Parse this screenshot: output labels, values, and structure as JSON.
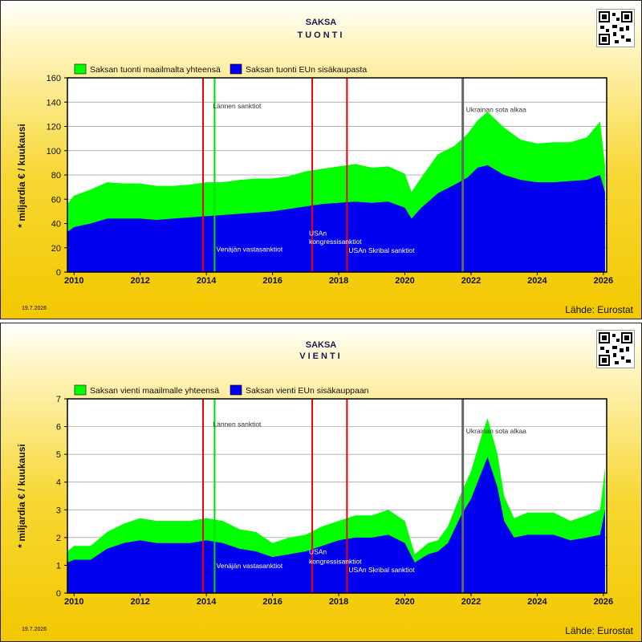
{
  "charts": [
    {
      "title": "SAKSA",
      "subtitle": "TUONTI",
      "ylabel": "* miljardia € / kuukausi",
      "legend": [
        "Saksan tuonti maailmalta yhteensä",
        "Saksan tuonti EUn sisäkaupasta"
      ],
      "date": "19.7.2026",
      "source": "Lähde: Eurostat"
    },
    {
      "title": "SAKSA",
      "subtitle": "VIENTI",
      "ylabel": "* miljardia € / kuukausi",
      "legend": [
        "Saksan vienti maailmalle yhteensä",
        "Saksan vienti EUn sisäkauppaan"
      ],
      "date": "19.7.2026",
      "source": "Lähde: Eurostat"
    }
  ],
  "colors": {
    "total": "#00ff00",
    "eu": "#0000ee",
    "sanction": "#ee0000",
    "west": "#00dd00",
    "war": "#666666"
  },
  "chart_data": [
    {
      "type": "area",
      "title": "SAKSA TUONTI",
      "ylabel": "* miljardia € / kuukausi",
      "ylim": [
        0,
        160
      ],
      "yticks": [
        0,
        20,
        40,
        60,
        80,
        100,
        120,
        140,
        160
      ],
      "xlim": [
        2009.8,
        2026.1
      ],
      "xticks": [
        2010,
        2012,
        2014,
        2016,
        2018,
        2020,
        2022,
        2024,
        2026
      ],
      "grid": true,
      "legend_position": "top-left",
      "series": [
        {
          "name": "Saksan tuonti maailmalta yhteensä",
          "x": [
            2009.8,
            2010.0,
            2010.5,
            2011.0,
            2011.5,
            2012.0,
            2012.5,
            2013.0,
            2013.5,
            2014.0,
            2014.5,
            2015.0,
            2015.5,
            2016.0,
            2016.5,
            2017.0,
            2017.5,
            2018.0,
            2018.5,
            2019.0,
            2019.5,
            2020.0,
            2020.2,
            2020.5,
            2021.0,
            2021.5,
            2021.9,
            2022.2,
            2022.5,
            2023.0,
            2023.5,
            2024.0,
            2024.5,
            2025.0,
            2025.5,
            2025.9,
            2026.05
          ],
          "y": [
            56,
            63,
            68,
            74,
            73,
            73,
            71,
            71,
            72,
            74,
            74,
            76,
            77,
            77,
            79,
            83,
            85,
            87,
            89,
            86,
            87,
            81,
            66,
            78,
            97,
            104,
            114,
            125,
            132,
            119,
            109,
            106,
            107,
            107,
            111,
            124,
            88
          ]
        },
        {
          "name": "Saksan tuonti EUn sisäkaupasta",
          "x": [
            2009.8,
            2010.0,
            2010.5,
            2011.0,
            2011.5,
            2012.0,
            2012.5,
            2013.0,
            2013.5,
            2014.0,
            2014.5,
            2015.0,
            2015.5,
            2016.0,
            2016.5,
            2017.0,
            2017.5,
            2018.0,
            2018.5,
            2019.0,
            2019.5,
            2020.0,
            2020.2,
            2020.5,
            2021.0,
            2021.5,
            2021.9,
            2022.2,
            2022.5,
            2023.0,
            2023.5,
            2024.0,
            2024.5,
            2025.0,
            2025.5,
            2025.9,
            2026.05
          ],
          "y": [
            33,
            37,
            40,
            44,
            44,
            44,
            43,
            44,
            45,
            46,
            47,
            48,
            49,
            50,
            52,
            54,
            56,
            57,
            58,
            57,
            58,
            53,
            44,
            53,
            65,
            72,
            78,
            86,
            88,
            80,
            76,
            74,
            74,
            75,
            76,
            80,
            66
          ]
        }
      ],
      "annotations": [
        {
          "text": "Lännen sanktiot",
          "x": 2014.2,
          "y": 135
        },
        {
          "text": "Venäjän vastasanktiot",
          "x": 2014.3,
          "y": 17
        },
        {
          "text": "USAn",
          "x": 2017.1,
          "y": 30
        },
        {
          "text": "kongressisanktiot",
          "x": 2017.1,
          "y": 23
        },
        {
          "text": "USAn Skribal sanktiot",
          "x": 2018.3,
          "y": 16
        },
        {
          "text": "Ukrainan sota alkaa",
          "x": 2021.85,
          "y": 132
        }
      ],
      "markers": [
        {
          "x": 2013.9,
          "kind": "sanction"
        },
        {
          "x": 2014.25,
          "kind": "west"
        },
        {
          "x": 2017.2,
          "kind": "sanction"
        },
        {
          "x": 2018.25,
          "kind": "sanction"
        },
        {
          "x": 2021.75,
          "kind": "war"
        }
      ]
    },
    {
      "type": "area",
      "title": "SAKSA VIENTI",
      "ylabel": "* miljardia € / kuukausi",
      "ylim": [
        0,
        7
      ],
      "yticks": [
        0,
        1,
        2,
        3,
        4,
        5,
        6,
        7
      ],
      "xlim": [
        2009.8,
        2026.1
      ],
      "xticks": [
        2010,
        2012,
        2014,
        2016,
        2018,
        2020,
        2022,
        2024,
        2026
      ],
      "grid": true,
      "legend_position": "top-left",
      "series": [
        {
          "name": "Saksan vienti maailmalle yhteensä",
          "x": [
            2009.8,
            2010.0,
            2010.5,
            2011.0,
            2011.5,
            2012.0,
            2012.5,
            2013.0,
            2013.5,
            2014.0,
            2014.5,
            2015.0,
            2015.5,
            2016.0,
            2016.5,
            2017.0,
            2017.5,
            2018.0,
            2018.5,
            2019.0,
            2019.5,
            2020.0,
            2020.3,
            2020.7,
            2021.0,
            2021.3,
            2021.7,
            2022.0,
            2022.3,
            2022.5,
            2022.8,
            2023.0,
            2023.3,
            2023.7,
            2024.0,
            2024.5,
            2025.0,
            2025.5,
            2025.9,
            2026.05
          ],
          "y": [
            1.5,
            1.7,
            1.7,
            2.2,
            2.5,
            2.7,
            2.6,
            2.6,
            2.6,
            2.7,
            2.6,
            2.3,
            2.2,
            1.8,
            2.0,
            2.1,
            2.4,
            2.6,
            2.8,
            2.8,
            3.0,
            2.6,
            1.4,
            1.8,
            1.9,
            2.4,
            3.6,
            4.4,
            5.6,
            6.3,
            5.0,
            3.5,
            2.7,
            2.9,
            2.9,
            2.9,
            2.6,
            2.8,
            3.0,
            4.5
          ]
        },
        {
          "name": "Saksan vienti EUn sisäkauppaan",
          "x": [
            2009.8,
            2010.0,
            2010.5,
            2011.0,
            2011.5,
            2012.0,
            2012.5,
            2013.0,
            2013.5,
            2014.0,
            2014.5,
            2015.0,
            2015.5,
            2016.0,
            2016.5,
            2017.0,
            2017.5,
            2018.0,
            2018.5,
            2019.0,
            2019.5,
            2020.0,
            2020.3,
            2020.7,
            2021.0,
            2021.3,
            2021.7,
            2022.0,
            2022.3,
            2022.5,
            2022.8,
            2023.0,
            2023.3,
            2023.7,
            2024.0,
            2024.5,
            2025.0,
            2025.5,
            2025.9,
            2026.05
          ],
          "y": [
            1.1,
            1.2,
            1.2,
            1.6,
            1.8,
            1.9,
            1.8,
            1.8,
            1.8,
            1.9,
            1.8,
            1.6,
            1.5,
            1.3,
            1.4,
            1.5,
            1.7,
            1.9,
            2.0,
            2.0,
            2.1,
            1.8,
            1.1,
            1.4,
            1.5,
            1.8,
            2.8,
            3.4,
            4.3,
            4.9,
            3.8,
            2.6,
            2.0,
            2.1,
            2.1,
            2.1,
            1.9,
            2.0,
            2.1,
            3.0
          ]
        }
      ],
      "annotations": [
        {
          "text": "Lännen sanktiot",
          "x": 2014.2,
          "y": 6.0
        },
        {
          "text": "Venäjän vastasanktiot",
          "x": 2014.3,
          "y": 0.9
        },
        {
          "text": "USAn",
          "x": 2017.1,
          "y": 1.4
        },
        {
          "text": "kongressisanktiot",
          "x": 2017.1,
          "y": 1.05
        },
        {
          "text": "USAn Skribal sanktiot",
          "x": 2018.3,
          "y": 0.75
        },
        {
          "text": "Ukrainan sota alkaa",
          "x": 2021.85,
          "y": 5.75
        }
      ],
      "markers": [
        {
          "x": 2013.9,
          "kind": "sanction"
        },
        {
          "x": 2014.25,
          "kind": "west"
        },
        {
          "x": 2017.2,
          "kind": "sanction"
        },
        {
          "x": 2018.25,
          "kind": "sanction"
        },
        {
          "x": 2021.75,
          "kind": "war"
        }
      ]
    }
  ]
}
